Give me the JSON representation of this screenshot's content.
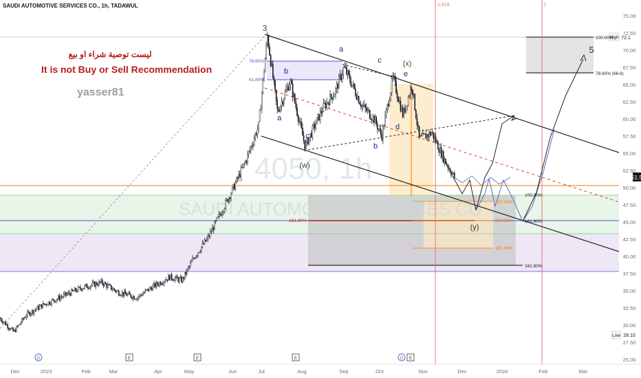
{
  "header": {
    "symbol_line": "SAUDI AUTOMOTIVE SERVICES CO., 1h, TADAWUL"
  },
  "annotations_text": {
    "arabic": "ليست توصية شراء او بيع",
    "english": "It is not Buy or Sell Recommendation",
    "author": "yasser81",
    "watermark_symbol": "4050, 1h",
    "watermark_name": "SAUDI AUTOMOTIVE SERVICES CO"
  },
  "colors": {
    "candle": "#131722",
    "accent_red": "#b71c1c",
    "wave_blue": "#1a237e",
    "wave_green": "#1b5e20",
    "orange": "#f57c00",
    "purple": "#5c4fc7",
    "pink": "#c2185b"
  },
  "chart_data": {
    "type": "candlestick",
    "title": "SAUDI AUTOMOTIVE SERVICES CO., 1h, TADAWUL",
    "xlabel": "",
    "ylabel": "",
    "ylim": [
      24.0,
      77.0
    ],
    "grid": false,
    "x_ticks": [
      "Dec",
      "2023",
      "Feb",
      "Mar",
      "Apr",
      "May",
      "Jun",
      "Jul",
      "Aug",
      "Sep",
      "Oct",
      "Nov",
      "Dec",
      "2024",
      "Feb",
      "Mar"
    ],
    "y_ticks": [
      25.0,
      27.5,
      30.0,
      32.5,
      35.0,
      37.5,
      40.0,
      42.5,
      45.0,
      47.5,
      50.0,
      52.5,
      55.0,
      57.5,
      60.0,
      62.5,
      65.0,
      67.5,
      70.0,
      72.5,
      75.0
    ],
    "last_price": "51.5",
    "price_axis_labels": [
      {
        "label": "72.1",
        "value": 72.1
      },
      {
        "label": "28.10",
        "value": 28.1
      }
    ],
    "high_label": "High",
    "low_label": "Low",
    "fib_labels": {
      "top_box_1": "100.00%",
      "top_box_2": "78.60% (66.6)",
      "left_78": "78.60%",
      "left_61": "61.80%",
      "mid_161": "161.80%",
      "ext_100": "100.00%",
      "ext_161_low": "161.80%",
      "orange_100": "100.00%",
      "orange_1": "127.20%",
      "orange_161": "161.80%",
      "proj_100": "100.00%",
      "proj_161": "161.80%",
      "time_1618": "1.618",
      "time_2": "2"
    },
    "wave_labels": [
      "3",
      "a",
      "b",
      "c",
      "(w)",
      "a",
      "b",
      "c",
      "d",
      "e",
      "(x)",
      "(y)",
      "5"
    ],
    "event_markers": [
      "D",
      "E",
      "E",
      "E",
      "D",
      "E"
    ],
    "price_path": [
      {
        "t": "2022-12-01",
        "price": 31.0
      },
      {
        "t": "2022-12-12",
        "price": 29.0
      },
      {
        "t": "2022-12-22",
        "price": 31.5
      },
      {
        "t": "2023-01-05",
        "price": 33.0
      },
      {
        "t": "2023-01-20",
        "price": 34.2
      },
      {
        "t": "2023-02-05",
        "price": 35.5
      },
      {
        "t": "2023-02-20",
        "price": 36.2
      },
      {
        "t": "2023-03-05",
        "price": 34.8
      },
      {
        "t": "2023-03-20",
        "price": 34.0
      },
      {
        "t": "2023-04-01",
        "price": 35.5
      },
      {
        "t": "2023-04-15",
        "price": 37.0
      },
      {
        "t": "2023-04-25",
        "price": 36.5
      },
      {
        "t": "2023-05-05",
        "price": 40.0
      },
      {
        "t": "2023-05-15",
        "price": 42.5
      },
      {
        "t": "2023-05-25",
        "price": 46.0
      },
      {
        "t": "2023-06-05",
        "price": 50.0
      },
      {
        "t": "2023-06-15",
        "price": 54.0
      },
      {
        "t": "2023-06-25",
        "price": 59.0
      },
      {
        "t": "2023-07-02",
        "price": 72.1
      },
      {
        "t": "2023-07-10",
        "price": 61.0
      },
      {
        "t": "2023-07-20",
        "price": 65.5
      },
      {
        "t": "2023-08-01",
        "price": 56.0
      },
      {
        "t": "2023-08-15",
        "price": 61.5
      },
      {
        "t": "2023-08-25",
        "price": 64.0
      },
      {
        "t": "2023-09-01",
        "price": 67.5
      },
      {
        "t": "2023-09-15",
        "price": 62.0
      },
      {
        "t": "2023-09-25",
        "price": 60.0
      },
      {
        "t": "2023-10-01",
        "price": 57.5
      },
      {
        "t": "2023-10-10",
        "price": 66.0
      },
      {
        "t": "2023-10-18",
        "price": 60.5
      },
      {
        "t": "2023-10-25",
        "price": 65.0
      },
      {
        "t": "2023-10-31",
        "price": 57.0
      },
      {
        "t": "2023-11-10",
        "price": 58.0
      },
      {
        "t": "2023-11-20",
        "price": 54.0
      },
      {
        "t": "2023-11-28",
        "price": 51.5
      }
    ]
  }
}
